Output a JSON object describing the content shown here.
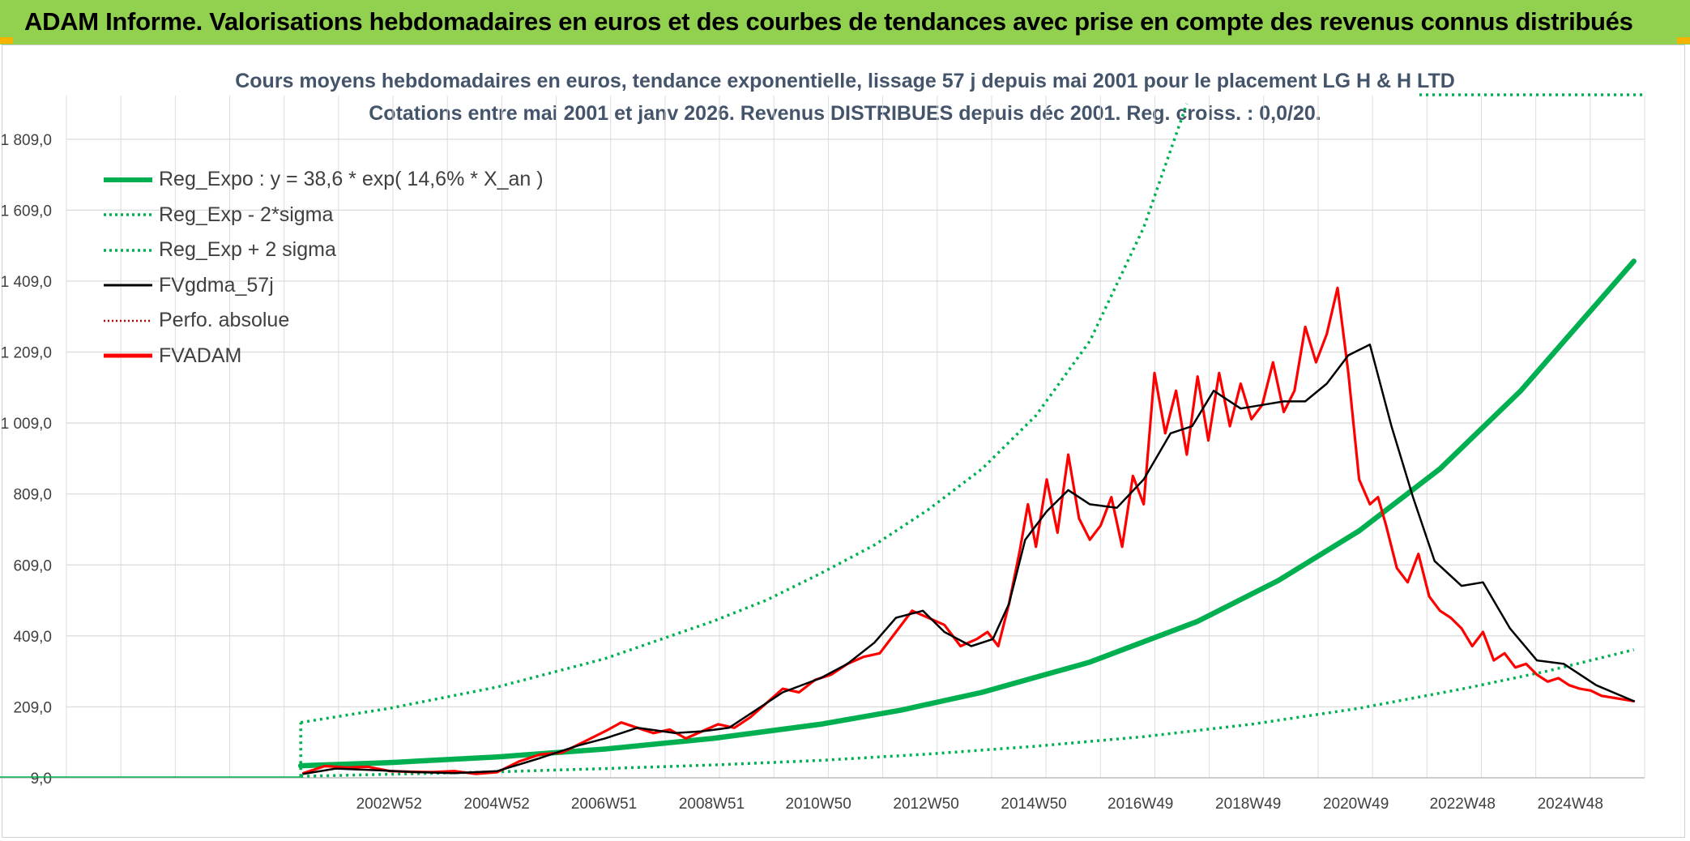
{
  "header": {
    "title": "ADAM Informe. Valorisations hebdomadaires en euros et des courbes de tendances avec prise en compte des revenus connus distribués"
  },
  "chart_data": {
    "type": "line",
    "title": "Cours moyens hebdomadaires en euros, tendance exponentielle, lissage 57 j depuis mai 2001 pour le placement LG H & H LTD",
    "subtitle": "Cotations entre mai 2001 et janv 2026. Revenus DISTRIBUES depuis déc 2001. Reg. croiss. : 0,0/20.",
    "xlabel": "",
    "ylabel": "",
    "ylim": [
      9,
      1909
    ],
    "xlim": [
      1997.0,
      2026.3
    ],
    "y_ticks": [
      "9,0",
      "209,0",
      "409,0",
      "609,0",
      "809,0",
      "1 009,0",
      "1 209,0",
      "1 409,0",
      "1 609,0",
      "1 809,0"
    ],
    "x_ticks": [
      {
        "label": "2002W52",
        "x": 2002.99
      },
      {
        "label": "2004W52",
        "x": 2004.99
      },
      {
        "label": "2006W51",
        "x": 2006.98
      },
      {
        "label": "2008W51",
        "x": 2008.98
      },
      {
        "label": "2010W50",
        "x": 2010.96
      },
      {
        "label": "2012W50",
        "x": 2012.96
      },
      {
        "label": "2014W50",
        "x": 2014.96
      },
      {
        "label": "2016W49",
        "x": 2016.94
      },
      {
        "label": "2018W49",
        "x": 2018.94
      },
      {
        "label": "2020W49",
        "x": 2020.94
      },
      {
        "label": "2022W48",
        "x": 2022.92
      },
      {
        "label": "2024W48",
        "x": 2024.92
      }
    ],
    "grid": true,
    "legend_position": "top-left",
    "series": [
      {
        "name": "Reg_Expo : y = 38,6 * exp( 14,6% *  X_an )",
        "style": "solid",
        "color": "#00b050",
        "x": [
          2001.35,
          2003,
          2005,
          2007,
          2009,
          2011,
          2012.5,
          2014,
          2016,
          2018,
          2019.5,
          2021,
          2022.5,
          2024,
          2026.1
        ],
        "values": [
          43,
          52,
          68,
          90,
          120,
          160,
          200,
          250,
          335,
          450,
          565,
          705,
          880,
          1100,
          1465
        ]
      },
      {
        "name": "Reg_Exp - 2*sigma",
        "style": "dotted",
        "color": "#00b050",
        "x": [
          2001.35,
          2003,
          2005,
          2007,
          2009,
          2011,
          2013,
          2015,
          2017,
          2019,
          2021,
          2023,
          2024.5,
          2026.1
        ],
        "values": [
          13,
          19,
          26,
          35,
          45,
          58,
          76,
          98,
          125,
          160,
          205,
          262,
          310,
          370
        ]
      },
      {
        "name": "Reg_Exp + 2 sigma",
        "style": "dotted",
        "color": "#00b050",
        "x": [
          2001.35,
          2003,
          2005,
          2007,
          2009,
          2010,
          2011,
          2012,
          2013,
          2014,
          2015,
          2016,
          2017,
          2017.8
        ],
        "values": [
          165,
          205,
          265,
          345,
          450,
          510,
          585,
          665,
          765,
          880,
          1030,
          1240,
          1560,
          1909
        ]
      },
      {
        "name": "FVgdma_57j",
        "style": "solid",
        "color": "#000000",
        "x": [
          2001.4,
          2002,
          2002.8,
          2003.5,
          2004.2,
          2005,
          2005.8,
          2006.5,
          2007,
          2007.6,
          2008.3,
          2008.8,
          2009.3,
          2009.8,
          2010.3,
          2011,
          2011.5,
          2012,
          2012.4,
          2012.9,
          2013.3,
          2013.8,
          2014.2,
          2014.5,
          2014.8,
          2015.2,
          2015.6,
          2016,
          2016.5,
          2017,
          2017.5,
          2017.9,
          2018.3,
          2018.8,
          2019.2,
          2019.6,
          2020,
          2020.4,
          2020.8,
          2021.2,
          2021.6,
          2022,
          2022.4,
          2022.9,
          2023.3,
          2023.8,
          2024.3,
          2024.8,
          2025.4,
          2026.1
        ],
        "values": [
          20,
          35,
          30,
          25,
          22,
          28,
          65,
          100,
          120,
          150,
          135,
          140,
          150,
          200,
          250,
          290,
          330,
          390,
          460,
          480,
          420,
          380,
          400,
          500,
          680,
          760,
          820,
          780,
          770,
          850,
          980,
          1000,
          1100,
          1050,
          1060,
          1070,
          1070,
          1120,
          1200,
          1230,
          1000,
          800,
          620,
          550,
          560,
          430,
          340,
          330,
          270,
          225
        ]
      },
      {
        "name": "Perfo. absolue",
        "style": "dotted",
        "color": "#c00000",
        "x": [],
        "values": []
      },
      {
        "name": "FVADAM",
        "style": "solid",
        "color": "#ff0000",
        "x": [
          2001.4,
          2001.8,
          2002.2,
          2002.6,
          2003.0,
          2003.4,
          2003.8,
          2004.2,
          2004.6,
          2005.0,
          2005.4,
          2005.8,
          2006.2,
          2006.6,
          2007.0,
          2007.3,
          2007.6,
          2007.9,
          2008.2,
          2008.5,
          2008.8,
          2009.1,
          2009.4,
          2009.7,
          2010.0,
          2010.3,
          2010.6,
          2010.9,
          2011.2,
          2011.5,
          2011.8,
          2012.1,
          2012.4,
          2012.7,
          2013.0,
          2013.3,
          2013.6,
          2013.9,
          2014.1,
          2014.3,
          2014.5,
          2014.7,
          2014.85,
          2015.0,
          2015.2,
          2015.4,
          2015.6,
          2015.8,
          2016.0,
          2016.2,
          2016.4,
          2016.6,
          2016.8,
          2017.0,
          2017.2,
          2017.4,
          2017.6,
          2017.8,
          2018.0,
          2018.2,
          2018.4,
          2018.6,
          2018.8,
          2019.0,
          2019.2,
          2019.4,
          2019.6,
          2019.8,
          2020.0,
          2020.2,
          2020.4,
          2020.6,
          2020.8,
          2021.0,
          2021.2,
          2021.35,
          2021.5,
          2021.7,
          2021.9,
          2022.1,
          2022.3,
          2022.5,
          2022.7,
          2022.9,
          2023.1,
          2023.3,
          2023.5,
          2023.7,
          2023.9,
          2024.1,
          2024.3,
          2024.5,
          2024.7,
          2024.9,
          2025.1,
          2025.3,
          2025.5,
          2025.7,
          2025.9,
          2026.1
        ],
        "values": [
          22,
          42,
          38,
          40,
          28,
          26,
          25,
          28,
          20,
          25,
          55,
          75,
          80,
          110,
          140,
          165,
          150,
          135,
          145,
          120,
          140,
          160,
          150,
          180,
          220,
          260,
          250,
          285,
          300,
          330,
          350,
          360,
          420,
          480,
          460,
          440,
          380,
          400,
          420,
          380,
          500,
          650,
          780,
          660,
          850,
          700,
          920,
          740,
          680,
          720,
          800,
          660,
          860,
          780,
          1150,
          980,
          1100,
          920,
          1140,
          960,
          1150,
          1000,
          1120,
          1020,
          1060,
          1180,
          1040,
          1100,
          1280,
          1180,
          1260,
          1390,
          1150,
          850,
          780,
          800,
          720,
          600,
          560,
          640,
          520,
          480,
          460,
          430,
          380,
          420,
          340,
          360,
          320,
          330,
          300,
          280,
          290,
          270,
          260,
          255,
          240,
          235,
          230,
          225
        ]
      }
    ]
  }
}
